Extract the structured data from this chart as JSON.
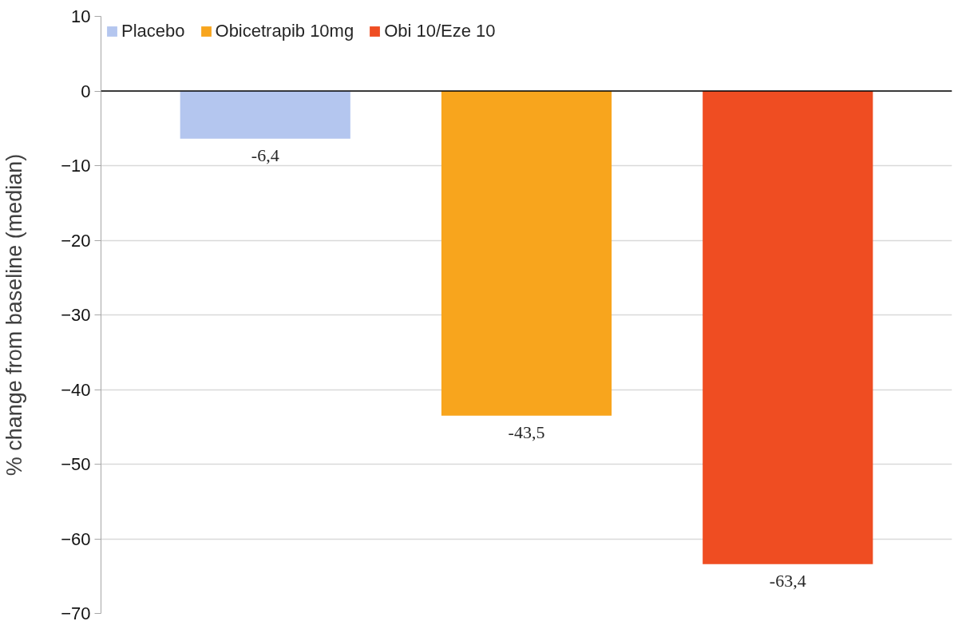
{
  "chart_data": {
    "type": "bar",
    "ylabel": "% change from baseline (median)",
    "categories": [
      null
    ],
    "series": [
      {
        "name": "Placebo",
        "color": "#b4c6ef",
        "values": [
          -6.4
        ],
        "value_labels": [
          "-6,4"
        ]
      },
      {
        "name": "Obicetrapib 10mg",
        "color": "#f8a51d",
        "values": [
          -43.5
        ],
        "value_labels": [
          "-43,5"
        ]
      },
      {
        "name": "Obi 10/Eze 10",
        "color": "#ef4d22",
        "values": [
          -63.4
        ],
        "value_labels": [
          "-63,4"
        ]
      }
    ],
    "ylim": [
      -70,
      10
    ],
    "yticks": [
      -70,
      -60,
      -50,
      -40,
      -30,
      -20,
      -10,
      0,
      10
    ],
    "grid": "y",
    "legend": "top"
  }
}
